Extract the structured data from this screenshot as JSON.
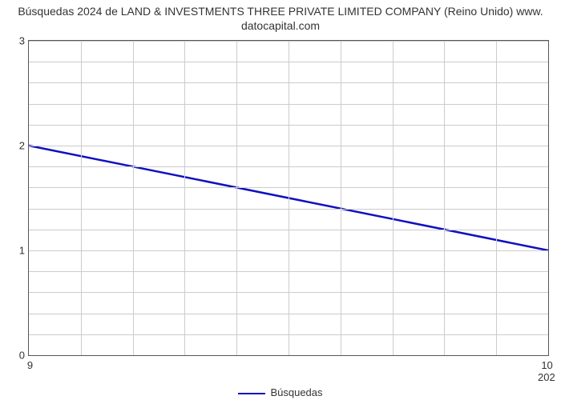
{
  "chart": {
    "type": "line",
    "title_line1": "Búsquedas 2024 de LAND & INVESTMENTS THREE PRIVATE LIMITED COMPANY (Reino Unido) www.",
    "title_line2": "datocapital.com",
    "title_fontsize": 14,
    "title_color": "#333333",
    "background_color": "#ffffff",
    "plot_border_color": "#555555",
    "grid_color": "#cccccc",
    "ylim": [
      0,
      3
    ],
    "yticks": [
      0,
      1,
      2,
      3
    ],
    "ytick_labels": [
      "0",
      "1",
      "2",
      "3"
    ],
    "minor_y_count": 4,
    "xlim": [
      9,
      10
    ],
    "xticks": [
      9,
      10
    ],
    "xtick_labels": [
      "9",
      "10"
    ],
    "xtick_secondary": "202",
    "minor_x_count": 9,
    "series": {
      "label": "Búsquedas",
      "color": "#1010c0",
      "line_width": 2.5,
      "points": [
        {
          "x": 9,
          "y": 2.0
        },
        {
          "x": 10,
          "y": 1.0
        }
      ]
    }
  }
}
